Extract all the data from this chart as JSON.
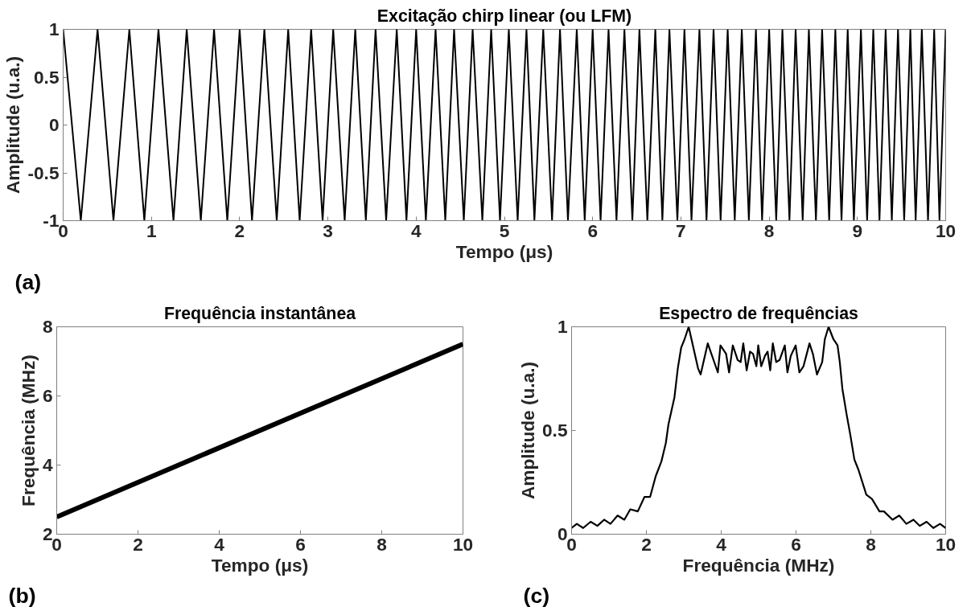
{
  "chart_data": [
    {
      "type": "line",
      "title": "Excitação chirp linear (ou LFM)",
      "xlabel": "Tempo (μs)",
      "ylabel": "Amplitude (u.a.)",
      "annotations": [
        "(a)"
      ],
      "xlim": [
        0,
        10
      ],
      "ylim": [
        -1,
        1
      ],
      "xticks": [
        0,
        1,
        2,
        3,
        4,
        5,
        6,
        7,
        8,
        9,
        10
      ],
      "yticks": [
        -1,
        -0.5,
        0,
        0.5,
        1
      ],
      "grid": false,
      "x": [
        0,
        0.2,
        0.39,
        0.57,
        0.75,
        0.92,
        1.08,
        1.25,
        1.4,
        1.56,
        1.71,
        1.86,
        2.0,
        2.14,
        2.28,
        2.42,
        2.55,
        2.68,
        2.81,
        2.94,
        3.06,
        3.19,
        3.31,
        3.43,
        3.54,
        3.66,
        3.78,
        3.89,
        4.0,
        4.11,
        4.22,
        4.33,
        4.43,
        4.54,
        4.64,
        4.75,
        4.85,
        4.95,
        5.05,
        5.15,
        5.25,
        5.34,
        5.44,
        5.54,
        5.63,
        5.72,
        5.82,
        5.91,
        6.0,
        6.09,
        6.18,
        6.27,
        6.36,
        6.45,
        6.53,
        6.62,
        6.71,
        6.79,
        6.87,
        6.96,
        7.04,
        7.12,
        7.21,
        7.29,
        7.37,
        7.45,
        7.53,
        7.61,
        7.69,
        7.77,
        7.85,
        7.92,
        8.0,
        8.08,
        8.15,
        8.23,
        8.3,
        8.38,
        8.45,
        8.53,
        8.6,
        8.68,
        8.75,
        8.82,
        8.89,
        8.96,
        9.04,
        9.11,
        9.18,
        9.25,
        9.32,
        9.39,
        9.46,
        9.53,
        9.6,
        9.66,
        9.73,
        9.8,
        9.87,
        9.93,
        10.0
      ],
      "series": [
        {
          "color": "#000000",
          "values": [
            1,
            -1,
            1,
            -1,
            1,
            -1,
            1,
            -1,
            1,
            -1,
            1,
            -1,
            1,
            -1,
            1,
            -1,
            1,
            -1,
            1,
            -1,
            1,
            -1,
            1,
            -1,
            1,
            -1,
            1,
            -1,
            1,
            -1,
            1,
            -1,
            1,
            -1,
            1,
            -1,
            1,
            -1,
            1,
            -1,
            1,
            -1,
            1,
            -1,
            1,
            -1,
            1,
            -1,
            1,
            -1,
            1,
            -1,
            1,
            -1,
            1,
            -1,
            1,
            -1,
            1,
            -1,
            1,
            -1,
            1,
            -1,
            1,
            -1,
            1,
            -1,
            1,
            -1,
            1,
            -1,
            1,
            -1,
            1,
            -1,
            1,
            -1,
            1,
            -1,
            1,
            -1,
            1,
            -1,
            1,
            -1,
            1,
            -1,
            1,
            -1,
            1,
            -1,
            1,
            -1,
            1,
            -1,
            1,
            -1,
            1,
            -1,
            1
          ]
        }
      ]
    },
    {
      "type": "line",
      "title": "Frequência instantânea",
      "xlabel": "Tempo (μs)",
      "ylabel": "Frequência (MHz)",
      "annotations": [
        "(b)"
      ],
      "xlim": [
        0,
        10
      ],
      "ylim": [
        2,
        8
      ],
      "xticks": [
        0,
        2,
        4,
        6,
        8,
        10
      ],
      "yticks": [
        2,
        4,
        6,
        8
      ],
      "grid": false,
      "x": [
        0,
        10
      ],
      "series": [
        {
          "color": "#000000",
          "values": [
            2.5,
            7.5
          ]
        }
      ]
    },
    {
      "type": "line",
      "title": "Espectro de frequências",
      "xlabel": "Frequência (MHz)",
      "ylabel": "Amplitude (u.a.)",
      "annotations": [
        "(c)"
      ],
      "xlim": [
        0,
        10
      ],
      "ylim": [
        0,
        1
      ],
      "xticks": [
        0,
        2,
        4,
        6,
        8,
        10
      ],
      "yticks": [
        0,
        0.5,
        1
      ],
      "grid": false,
      "x": [
        0,
        0.14,
        0.31,
        0.51,
        0.69,
        0.87,
        1.04,
        1.23,
        1.41,
        1.57,
        1.77,
        1.95,
        2.1,
        2.25,
        2.4,
        2.52,
        2.59,
        2.75,
        2.84,
        2.93,
        3.02,
        3.13,
        3.38,
        3.45,
        3.64,
        3.91,
        3.98,
        4.13,
        4.21,
        4.31,
        4.44,
        4.52,
        4.59,
        4.68,
        4.77,
        4.85,
        4.94,
        4.99,
        5.07,
        5.17,
        5.24,
        5.31,
        5.38,
        5.47,
        5.56,
        5.7,
        5.77,
        5.86,
        5.99,
        6.09,
        6.2,
        6.36,
        6.45,
        6.56,
        6.7,
        6.77,
        6.87,
        7.0,
        7.11,
        7.17,
        7.24,
        7.35,
        7.45,
        7.56,
        7.67,
        7.81,
        7.88,
        8.03,
        8.23,
        8.35,
        8.58,
        8.76,
        8.95,
        9.14,
        9.31,
        9.49,
        9.67,
        9.85,
        10.0
      ],
      "series": [
        {
          "color": "#000000",
          "values": [
            0.03,
            0.05,
            0.03,
            0.06,
            0.04,
            0.07,
            0.05,
            0.09,
            0.07,
            0.12,
            0.11,
            0.18,
            0.18,
            0.28,
            0.35,
            0.44,
            0.53,
            0.66,
            0.8,
            0.9,
            0.94,
            1.0,
            0.8,
            0.77,
            0.92,
            0.78,
            0.91,
            0.87,
            0.78,
            0.91,
            0.84,
            0.83,
            0.92,
            0.79,
            0.88,
            0.87,
            0.81,
            0.91,
            0.81,
            0.86,
            0.88,
            0.79,
            0.92,
            0.83,
            0.84,
            0.91,
            0.78,
            0.86,
            0.91,
            0.78,
            0.81,
            0.92,
            0.87,
            0.77,
            0.83,
            0.94,
            1.0,
            0.94,
            0.91,
            0.83,
            0.7,
            0.58,
            0.48,
            0.36,
            0.31,
            0.23,
            0.19,
            0.17,
            0.11,
            0.11,
            0.07,
            0.09,
            0.05,
            0.07,
            0.04,
            0.06,
            0.03,
            0.05,
            0.03
          ]
        }
      ]
    }
  ]
}
